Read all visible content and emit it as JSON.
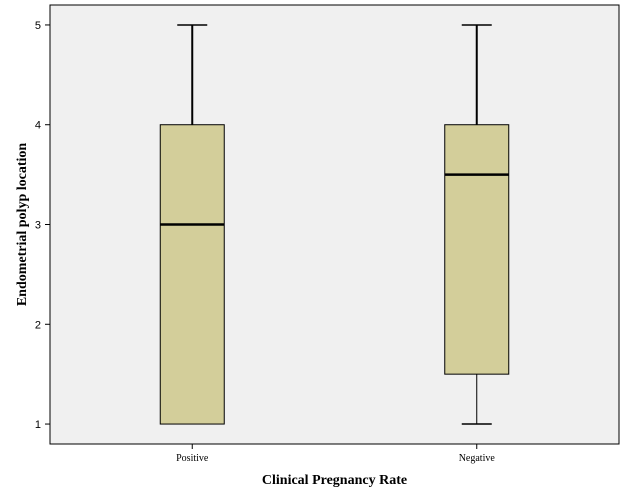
{
  "chart_data": {
    "type": "box",
    "title": "",
    "xlabel": "Clinical Pregnancy Rate",
    "ylabel": "Endometrial polyp location",
    "ylim": [
      0.8,
      5.2
    ],
    "yticks": [
      1,
      2,
      3,
      4,
      5
    ],
    "categories": [
      "Positive",
      "Negative"
    ],
    "boxes": [
      {
        "category": "Positive",
        "min": 1,
        "q1": 1,
        "median": 3,
        "q3": 4,
        "max": 5
      },
      {
        "category": "Negative",
        "min": 1,
        "q1": 1.5,
        "median": 3.5,
        "q3": 4,
        "max": 5
      }
    ],
    "grid": false,
    "colors": {
      "plot_background": "#f0f0f0",
      "box_fill": "#d3ce9a",
      "line": "#000000"
    }
  }
}
